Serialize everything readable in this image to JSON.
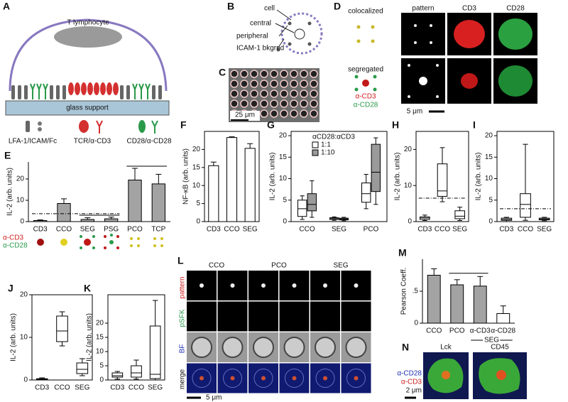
{
  "panel_A": {
    "letter": "A",
    "cell": "T lymphocyte",
    "support": "glass support",
    "legend": [
      "LFA-1/ICAM/Fc",
      "TCR/α-CD3",
      "CD28/α-CD28"
    ]
  },
  "panel_B": {
    "letter": "B",
    "labels": [
      "cell",
      "central",
      "peripheral",
      "ICAM-1 bkgrnd"
    ]
  },
  "panel_C": {
    "letter": "C",
    "scale": "25 μm"
  },
  "panel_D": {
    "letter": "D",
    "rows": [
      "colocalized",
      "segregated"
    ],
    "columns": [
      "pattern",
      "CD3",
      "CD28"
    ],
    "legend": [
      "α-CD3",
      "α-CD28"
    ],
    "scale": "5 μm"
  },
  "panel_L": {
    "letter": "L",
    "columns": [
      "CCO",
      "PCO",
      "SEG"
    ],
    "rows": [
      "pattern",
      "pSFK",
      "BF",
      "merge"
    ],
    "scale": "5 μm"
  },
  "panel_N": {
    "letter": "N",
    "columns": [
      "Lck",
      "CD45"
    ],
    "legend": [
      "α-CD28",
      "α-CD3"
    ],
    "scale": "2 μm"
  },
  "chart_data": [
    {
      "type": "bar",
      "panel": "E",
      "ylabel": "IL-2 (arb. units)",
      "categories": [
        "CD3",
        "CCO",
        "SEG",
        "PSG",
        "PCO",
        "TCP"
      ],
      "values": [
        0.5,
        8.5,
        1,
        1.3,
        19.5,
        17.7
      ],
      "errors": [
        0.3,
        2.2,
        0.8,
        0.8,
        5.5,
        4.5
      ],
      "color": "#a3a3a3",
      "ylim": [
        0,
        28
      ],
      "yticks": [
        0,
        10,
        20
      ],
      "ref_lines": [
        {
          "y": 3.7,
          "dash": true
        },
        {
          "y": 3,
          "dash": false
        },
        {
          "y": 26,
          "dash": false
        }
      ],
      "annotations": [
        "α-CD3",
        "α-CD28"
      ],
      "frame": false
    },
    {
      "type": "bar",
      "panel": "F",
      "ylabel": "NF-κB (arb. units)",
      "categories": [
        "CD3",
        "CCO",
        "SEG"
      ],
      "values": [
        15.5,
        23.3,
        20.3
      ],
      "errors": [
        1,
        0.2,
        1.3
      ],
      "color": "#ffffff",
      "ylim": [
        0,
        25
      ],
      "yticks": [
        0,
        5,
        10,
        15,
        20
      ],
      "frame": true
    },
    {
      "type": "box",
      "panel": "G",
      "ylabel": "IL-2 (arb. units)",
      "categories": [
        "CCO",
        "SEG",
        "PCO"
      ],
      "legend_title": "αCD28:αCD3",
      "series": [
        {
          "name": "1:1",
          "color": "#ffffff",
          "boxes": [
            {
              "min": 0.5,
              "q1": 1.2,
              "median": 3,
              "q3": 5,
              "max": 6
            },
            {
              "min": 0.3,
              "q1": 0.5,
              "median": 0.7,
              "q3": 0.9,
              "max": 1.1
            },
            {
              "min": 3,
              "q1": 4.5,
              "median": 6.5,
              "q3": 9,
              "max": 11
            }
          ]
        },
        {
          "name": "1:10",
          "color": "#9a9a9a",
          "boxes": [
            {
              "min": 1,
              "q1": 2.5,
              "median": 4,
              "q3": 6.5,
              "max": 9.5
            },
            {
              "min": 0.2,
              "q1": 0.4,
              "median": 0.6,
              "q3": 0.8,
              "max": 1
            },
            {
              "min": 4,
              "q1": 7,
              "median": 11.5,
              "q3": 18,
              "max": 19.5
            }
          ]
        }
      ],
      "ylim": [
        0,
        21
      ],
      "yticks": [
        0,
        5,
        10,
        15,
        20
      ],
      "frame": true
    },
    {
      "type": "box",
      "panel": "H",
      "ylabel": "IL-2 (arb. units)",
      "categories": [
        "CD3",
        "CCO",
        "SEG"
      ],
      "series": [
        {
          "color": "#ffffff",
          "boxes": [
            {
              "min": 0.3,
              "q1": 0.6,
              "median": 1,
              "q3": 1.3,
              "max": 1.8
            },
            {
              "min": 5.5,
              "q1": 7,
              "median": 8.5,
              "q3": 16,
              "max": 20.5
            },
            {
              "min": 0.3,
              "q1": 0.8,
              "median": 1.5,
              "q3": 3,
              "max": 4
            }
          ]
        }
      ],
      "ylim": [
        0,
        25
      ],
      "yticks": [
        0,
        10,
        20
      ],
      "ref_lines": [
        {
          "y": 6.5,
          "dash": true
        }
      ],
      "frame": true
    },
    {
      "type": "box",
      "panel": "I",
      "ylabel": "IL-2 (arb. units)",
      "categories": [
        "CD3",
        "CCO",
        "SEG"
      ],
      "series": [
        {
          "color": "#ffffff",
          "boxes": [
            {
              "min": 0,
              "q1": 0.3,
              "median": 0.5,
              "q3": 0.8,
              "max": 1
            },
            {
              "min": 0.3,
              "q1": 1,
              "median": 4,
              "q3": 6.5,
              "max": 18
            },
            {
              "min": 0.2,
              "q1": 0.4,
              "median": 0.6,
              "q3": 0.8,
              "max": 1
            }
          ]
        }
      ],
      "ylim": [
        0,
        21
      ],
      "yticks": [
        0,
        5,
        10,
        15,
        20
      ],
      "ref_lines": [
        {
          "y": 3,
          "dash": true
        }
      ],
      "frame": true
    },
    {
      "type": "box",
      "panel": "J",
      "ylabel": "IL-2 (arb. units)",
      "categories": [
        "CD3",
        "CCO",
        "SEG"
      ],
      "series": [
        {
          "color": "#ffffff",
          "boxes": [
            {
              "min": 0,
              "q1": 0.1,
              "median": 0.2,
              "q3": 0.3,
              "max": 0.5
            },
            {
              "min": 8,
              "q1": 9,
              "median": 11.5,
              "q3": 15,
              "max": 16
            },
            {
              "min": 1,
              "q1": 1.5,
              "median": 2.5,
              "q3": 4,
              "max": 5
            }
          ]
        }
      ],
      "ylim": [
        0,
        20
      ],
      "yticks": [
        0,
        10,
        20
      ],
      "frame": true
    },
    {
      "type": "box",
      "panel": "K",
      "ylabel": "IL-2 (arb. units)",
      "categories": [
        "CD3",
        "CCO",
        "SEG"
      ],
      "series": [
        {
          "color": "#ffffff",
          "boxes": [
            {
              "min": 0.3,
              "q1": 1,
              "median": 1.5,
              "q3": 2.5,
              "max": 3
            },
            {
              "min": 0.3,
              "q1": 1,
              "median": 2.5,
              "q3": 5,
              "max": 7
            },
            {
              "min": 0,
              "q1": 0.5,
              "median": 2,
              "q3": 19,
              "max": 28
            }
          ]
        }
      ],
      "ylim": [
        0,
        30
      ],
      "yticks": [
        0,
        5,
        10,
        15,
        20
      ],
      "frame": true
    },
    {
      "type": "bar",
      "panel": "M",
      "ylabel": "Pearson Coeff.",
      "categories": [
        "CCO",
        "PCO",
        "α-CD3",
        "α-CD28"
      ],
      "values": [
        0.75,
        0.6,
        0.58,
        0.15
      ],
      "errors": [
        0.1,
        0.08,
        0.15,
        0.12
      ],
      "colors": [
        "#a3a3a3",
        "#a3a3a3",
        "#a3a3a3",
        "#ffffff"
      ],
      "ylim": [
        0,
        1
      ],
      "yticks": [
        0,
        {
          "value": 0.5,
          "label": ".5"
        }
      ],
      "ref_lines": [
        {
          "y": 0.78,
          "dash": false
        }
      ],
      "group_label": "SEG",
      "frame": false
    }
  ]
}
